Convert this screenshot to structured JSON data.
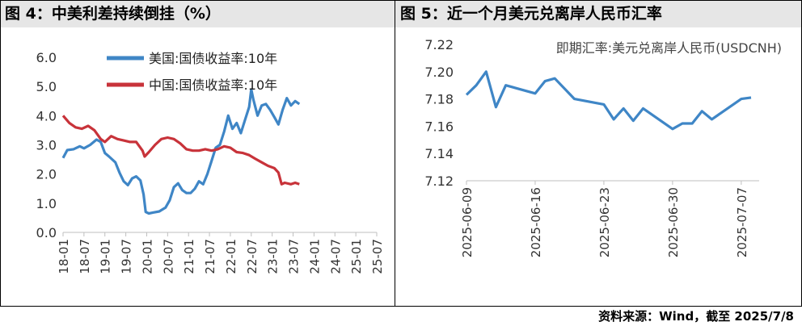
{
  "chart_data": [
    {
      "type": "line",
      "title": "图 4：中美利差持续倒挂（%）",
      "ylim": [
        0,
        6
      ],
      "yticks": [
        "0.0",
        "1.0",
        "2.0",
        "3.0",
        "4.0",
        "5.0",
        "6.0"
      ],
      "x_categories": [
        "18-01",
        "18-07",
        "19-01",
        "19-07",
        "20-01",
        "20-07",
        "21-01",
        "21-07",
        "22-01",
        "22-07",
        "23-01",
        "23-07",
        "24-01",
        "24-07",
        "25-01",
        "25-07"
      ],
      "legend_position": "top-center",
      "series": [
        {
          "name": "美国:国债收益率:10年",
          "color": "#3f86c6",
          "points": [
            [
              0,
              2.55
            ],
            [
              0.2,
              2.82
            ],
            [
              0.5,
              2.85
            ],
            [
              0.8,
              2.95
            ],
            [
              1.0,
              2.88
            ],
            [
              1.3,
              3.0
            ],
            [
              1.6,
              3.18
            ],
            [
              1.8,
              3.1
            ],
            [
              2.0,
              2.72
            ],
            [
              2.2,
              2.6
            ],
            [
              2.5,
              2.4
            ],
            [
              2.7,
              2.05
            ],
            [
              2.9,
              1.75
            ],
            [
              3.1,
              1.62
            ],
            [
              3.3,
              1.85
            ],
            [
              3.5,
              1.92
            ],
            [
              3.7,
              1.78
            ],
            [
              3.85,
              1.3
            ],
            [
              3.95,
              0.7
            ],
            [
              4.1,
              0.65
            ],
            [
              4.3,
              0.68
            ],
            [
              4.6,
              0.72
            ],
            [
              4.9,
              0.85
            ],
            [
              5.1,
              1.1
            ],
            [
              5.3,
              1.55
            ],
            [
              5.5,
              1.68
            ],
            [
              5.7,
              1.45
            ],
            [
              5.9,
              1.35
            ],
            [
              6.1,
              1.35
            ],
            [
              6.3,
              1.5
            ],
            [
              6.5,
              1.75
            ],
            [
              6.7,
              1.65
            ],
            [
              6.9,
              2.0
            ],
            [
              7.1,
              2.45
            ],
            [
              7.3,
              2.9
            ],
            [
              7.5,
              3.0
            ],
            [
              7.7,
              3.45
            ],
            [
              7.9,
              4.0
            ],
            [
              8.1,
              3.55
            ],
            [
              8.3,
              3.75
            ],
            [
              8.5,
              3.4
            ],
            [
              8.7,
              3.85
            ],
            [
              8.9,
              4.3
            ],
            [
              9.0,
              4.9
            ],
            [
              9.1,
              4.55
            ],
            [
              9.3,
              4.0
            ],
            [
              9.5,
              4.35
            ],
            [
              9.7,
              4.4
            ],
            [
              9.9,
              4.2
            ],
            [
              10.1,
              3.95
            ],
            [
              10.3,
              3.7
            ],
            [
              10.5,
              4.2
            ],
            [
              10.7,
              4.6
            ],
            [
              10.9,
              4.35
            ],
            [
              11.1,
              4.5
            ],
            [
              11.3,
              4.4
            ]
          ],
          "label_color": "#000000"
        },
        {
          "name": "中国:国债收益率:10年",
          "color": "#c8333a",
          "points": [
            [
              0,
              4.0
            ],
            [
              0.3,
              3.75
            ],
            [
              0.6,
              3.6
            ],
            [
              0.9,
              3.55
            ],
            [
              1.2,
              3.65
            ],
            [
              1.5,
              3.5
            ],
            [
              1.8,
              3.2
            ],
            [
              2.0,
              3.1
            ],
            [
              2.3,
              3.3
            ],
            [
              2.6,
              3.2
            ],
            [
              2.9,
              3.15
            ],
            [
              3.2,
              3.1
            ],
            [
              3.5,
              3.1
            ],
            [
              3.8,
              2.8
            ],
            [
              3.9,
              2.6
            ],
            [
              4.1,
              2.75
            ],
            [
              4.4,
              3.0
            ],
            [
              4.7,
              3.2
            ],
            [
              5.0,
              3.25
            ],
            [
              5.3,
              3.2
            ],
            [
              5.6,
              3.05
            ],
            [
              5.9,
              2.85
            ],
            [
              6.2,
              2.8
            ],
            [
              6.5,
              2.8
            ],
            [
              6.8,
              2.85
            ],
            [
              7.1,
              2.8
            ],
            [
              7.4,
              2.85
            ],
            [
              7.7,
              2.95
            ],
            [
              8.0,
              2.9
            ],
            [
              8.3,
              2.75
            ],
            [
              8.6,
              2.72
            ],
            [
              8.9,
              2.65
            ],
            [
              9.2,
              2.52
            ],
            [
              9.5,
              2.4
            ],
            [
              9.8,
              2.28
            ],
            [
              10.1,
              2.2
            ],
            [
              10.3,
              2.05
            ],
            [
              10.45,
              1.65
            ],
            [
              10.6,
              1.7
            ],
            [
              10.9,
              1.65
            ],
            [
              11.1,
              1.7
            ],
            [
              11.3,
              1.65
            ]
          ]
        }
      ]
    },
    {
      "type": "line",
      "title": "图 5：近一个月美元兑离岸人民币汇率",
      "ylim": [
        7.12,
        7.22
      ],
      "yticks": [
        "7.12",
        "7.14",
        "7.16",
        "7.18",
        "7.20",
        "7.22"
      ],
      "x_categories": [
        "2025-06-09",
        "2025-06-16",
        "2025-06-23",
        "2025-06-30",
        "2025-07-07"
      ],
      "legend_position": "top-right",
      "series": [
        {
          "name": "即期汇率:美元兑离岸人民币(USDCNH)",
          "color": "#3f86c6",
          "points": [
            [
              0,
              7.183
            ],
            [
              1,
              7.19
            ],
            [
              2,
              7.2
            ],
            [
              3,
              7.174
            ],
            [
              4,
              7.19
            ],
            [
              7,
              7.184
            ],
            [
              8,
              7.193
            ],
            [
              9,
              7.195
            ],
            [
              11,
              7.18
            ],
            [
              14,
              7.176
            ],
            [
              15,
              7.165
            ],
            [
              16,
              7.173
            ],
            [
              17,
              7.164
            ],
            [
              18,
              7.173
            ],
            [
              21,
              7.158
            ],
            [
              22,
              7.162
            ],
            [
              23,
              7.162
            ],
            [
              24,
              7.171
            ],
            [
              25,
              7.165
            ],
            [
              28,
              7.18
            ],
            [
              29,
              7.181
            ]
          ]
        }
      ]
    }
  ],
  "source_label": "资料来源：Wind，截至 2025/7/8"
}
